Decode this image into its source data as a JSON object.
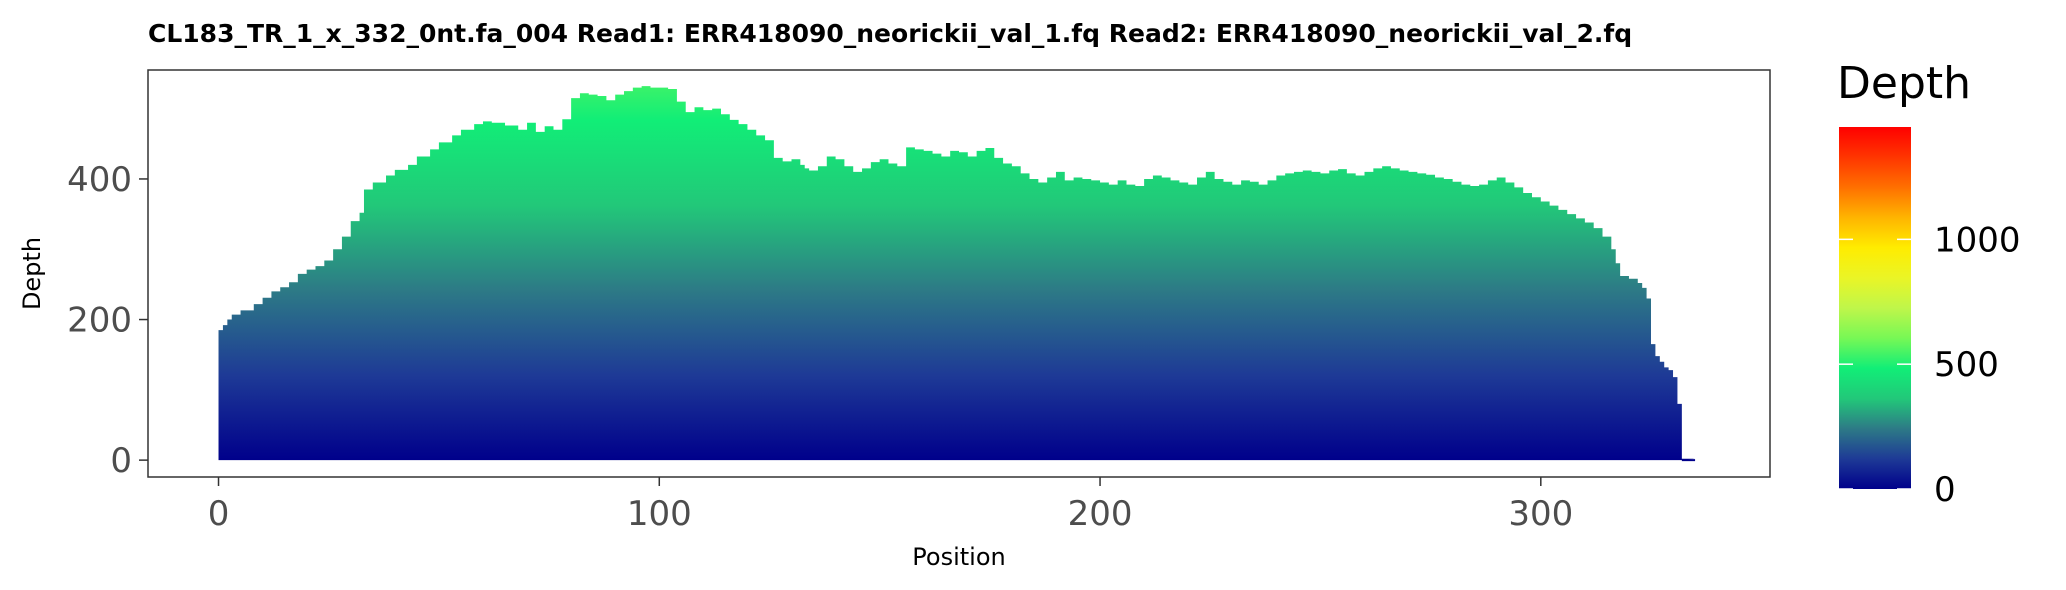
{
  "chart_data": {
    "type": "area",
    "title": "CL183_TR_1_x_332_0nt.fa_004   Read1: ERR418090_neorickii_val_1.fq   Read2: ERR418090_neorickii_val_2.fq",
    "xlabel": "Position",
    "ylabel": "Depth",
    "xlim": [
      -16,
      352
    ],
    "ylim": [
      -24,
      555
    ],
    "x_ticks": [
      0,
      100,
      200,
      300
    ],
    "y_ticks": [
      0,
      200,
      400
    ],
    "x": [
      0,
      1,
      2,
      3,
      5,
      8,
      10,
      12,
      14,
      16,
      18,
      20,
      22,
      24,
      26,
      28,
      30,
      32,
      33,
      35,
      38,
      40,
      43,
      45,
      48,
      50,
      53,
      55,
      58,
      60,
      62,
      65,
      68,
      70,
      72,
      74,
      76,
      78,
      80,
      82,
      84,
      86,
      88,
      90,
      92,
      94,
      96,
      98,
      100,
      102,
      104,
      106,
      108,
      110,
      112,
      114,
      116,
      118,
      120,
      122,
      124,
      126,
      128,
      130,
      132,
      133,
      134,
      136,
      138,
      140,
      142,
      144,
      146,
      148,
      150,
      152,
      154,
      156,
      158,
      160,
      162,
      164,
      166,
      168,
      170,
      172,
      174,
      176,
      178,
      180,
      182,
      184,
      186,
      188,
      190,
      192,
      194,
      196,
      198,
      200,
      202,
      204,
      206,
      208,
      210,
      212,
      214,
      216,
      218,
      220,
      222,
      224,
      226,
      228,
      230,
      232,
      234,
      236,
      238,
      240,
      242,
      244,
      246,
      248,
      250,
      252,
      254,
      256,
      258,
      260,
      262,
      264,
      266,
      268,
      270,
      272,
      274,
      276,
      278,
      280,
      282,
      284,
      286,
      288,
      290,
      292,
      294,
      296,
      298,
      300,
      302,
      304,
      306,
      308,
      310,
      312,
      314,
      316,
      317,
      318,
      320,
      322,
      323,
      324,
      325,
      326,
      327,
      328,
      329,
      330,
      331,
      332,
      335
    ],
    "y": [
      185,
      192,
      200,
      207,
      213,
      222,
      231,
      240,
      246,
      253,
      265,
      271,
      276,
      284,
      300,
      318,
      340,
      352,
      385,
      395,
      405,
      413,
      420,
      432,
      442,
      452,
      462,
      470,
      478,
      482,
      480,
      476,
      470,
      480,
      467,
      475,
      470,
      485,
      515,
      522,
      520,
      518,
      512,
      520,
      525,
      530,
      532,
      530,
      530,
      528,
      510,
      495,
      502,
      498,
      500,
      492,
      484,
      478,
      470,
      462,
      455,
      430,
      425,
      428,
      420,
      415,
      412,
      418,
      432,
      428,
      418,
      410,
      415,
      424,
      428,
      422,
      418,
      445,
      442,
      440,
      436,
      432,
      440,
      438,
      432,
      440,
      444,
      430,
      422,
      418,
      408,
      400,
      395,
      402,
      410,
      398,
      402,
      400,
      398,
      395,
      392,
      398,
      392,
      390,
      400,
      405,
      402,
      398,
      395,
      392,
      402,
      410,
      400,
      396,
      392,
      398,
      396,
      392,
      398,
      405,
      408,
      410,
      412,
      410,
      408,
      412,
      414,
      408,
      405,
      410,
      415,
      418,
      415,
      412,
      410,
      408,
      406,
      402,
      400,
      396,
      392,
      390,
      392,
      398,
      402,
      395,
      388,
      380,
      374,
      368,
      362,
      356,
      350,
      344,
      338,
      330,
      318,
      300,
      280,
      262,
      258,
      252,
      245,
      230,
      165,
      148,
      140,
      132,
      128,
      118,
      80,
      2,
      2
    ],
    "legend": {
      "title": "Depth",
      "range": [
        0,
        1450
      ],
      "ticks": [
        0,
        500,
        1000
      ],
      "colors": [
        "#00008b",
        "#1e3a96",
        "#2d7a86",
        "#22c879",
        "#11ee77",
        "#77f855",
        "#bff64a",
        "#eaf526",
        "#ffec00",
        "#ffb400",
        "#ff7000",
        "#ff3500",
        "#ff0000"
      ],
      "placement": "right"
    }
  }
}
